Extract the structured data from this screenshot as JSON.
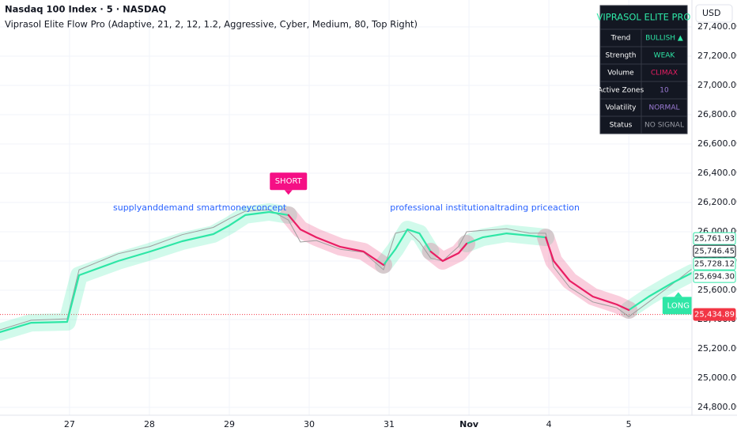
{
  "header": {
    "symbol": "Nasdaq 100 Index · 5 · NASDAQ",
    "indicator": "Viprasol Elite Flow Pro (Adaptive, 21, 2, 12, 1.2, Aggressive, Cyber, Medium, 80, Top Right)",
    "currency": "USD"
  },
  "dashboard": {
    "title": "VIPRASOL ELITE PRO",
    "rows": [
      {
        "label": "Trend",
        "value": "BULLISH ▲",
        "color": "#2ee6a6"
      },
      {
        "label": "Strength",
        "value": "WEAK",
        "color": "#2ee6a6"
      },
      {
        "label": "Volume",
        "value": "CLIMAX",
        "color": "#e91e63"
      },
      {
        "label": "Active Zones",
        "value": 10,
        "color": "#9c7bd6"
      },
      {
        "label": "Volatility",
        "value": "NORMAL",
        "color": "#9c7bd6"
      },
      {
        "label": "Status",
        "value": "NO SIGNAL",
        "color": "#9598a1"
      }
    ]
  },
  "chart_data": {
    "type": "line",
    "grid": true,
    "xlim": [
      -0.87,
      7.79
    ],
    "xticks": [
      {
        "value": 0,
        "label": "27"
      },
      {
        "value": 1,
        "label": "28"
      },
      {
        "value": 2,
        "label": "29"
      },
      {
        "value": 3,
        "label": "30"
      },
      {
        "value": 4,
        "label": "31"
      },
      {
        "value": 5,
        "label": "Nov"
      },
      {
        "value": 6,
        "label": "4"
      },
      {
        "value": 7,
        "label": "5"
      }
    ],
    "ylim": [
      24746,
      27584
    ],
    "yticks": [
      {
        "value": 24800,
        "label": "24,800.00"
      },
      {
        "value": 25000,
        "label": "25,000.00"
      },
      {
        "value": 25200,
        "label": "25,200.00"
      },
      {
        "value": 25400,
        "label": "25,400.00"
      },
      {
        "value": 25600,
        "label": "25,600.00"
      },
      {
        "value": 25800,
        "label": "25,800.00"
      },
      {
        "value": 26000,
        "label": "26,000.00"
      },
      {
        "value": 26200,
        "label": "26,200.00"
      },
      {
        "value": 26400,
        "label": "26,400.00"
      },
      {
        "value": 26600,
        "label": "26,600.00"
      },
      {
        "value": 26800,
        "label": "26,800.00"
      },
      {
        "value": 27000,
        "label": "27,000.00"
      },
      {
        "value": 27200,
        "label": "27,200.00"
      },
      {
        "value": 27400,
        "label": "27,400.00"
      }
    ],
    "x": [
      -0.87,
      -0.48,
      -0.03,
      0.12,
      0.61,
      1.01,
      1.41,
      1.8,
      2.0,
      2.2,
      2.5,
      2.74,
      2.89,
      3.09,
      3.39,
      3.68,
      3.93,
      4.08,
      4.23,
      4.38,
      4.52,
      4.67,
      4.87,
      4.97,
      5.17,
      5.47,
      5.76,
      5.96,
      6.06,
      6.26,
      6.55,
      6.85,
      7.0,
      7.25,
      7.54,
      7.79
    ],
    "series": [
      {
        "color": "#9e9e9e",
        "values": [
          25330,
          25395,
          25405,
          25740,
          25850,
          25900,
          25980,
          26030,
          26090,
          26140,
          26150,
          26080,
          25930,
          25940,
          25880,
          25860,
          25740,
          25990,
          26010,
          25930,
          25820,
          25800,
          25900,
          26000,
          26010,
          26020,
          25990,
          25990,
          25760,
          25620,
          25520,
          25480,
          25420,
          25520,
          25640,
          25746
        ]
      },
      {
        "color": "#2ee6a6",
        "values": [
          25314,
          25378,
          25384,
          25703,
          25800,
          25865,
          25935,
          25984,
          26043,
          26114,
          26135,
          26114,
          null,
          null,
          null,
          null,
          25773,
          25881,
          26016,
          25989,
          25865,
          null,
          null,
          25919,
          25962,
          25989,
          25973,
          25962,
          null,
          null,
          null,
          null,
          25465,
          25557,
          25649,
          25719
        ]
      },
      {
        "color": "#e91e63",
        "values": [
          null,
          null,
          null,
          null,
          null,
          null,
          null,
          null,
          null,
          null,
          null,
          26114,
          26016,
          25962,
          25897,
          25865,
          25773,
          null,
          null,
          null,
          25865,
          25800,
          25854,
          25919,
          null,
          null,
          null,
          25962,
          25800,
          25665,
          25557,
          25503,
          25465,
          null,
          null,
          null
        ]
      }
    ],
    "price_labels": [
      {
        "value": 25761.93,
        "label": "25,761.93",
        "color": "#2ee6a6",
        "style": "outline"
      },
      {
        "value": 25746.45,
        "label": "25,746.45",
        "color": "#131722",
        "style": "outline"
      },
      {
        "value": 25728.12,
        "label": "25,728.12",
        "color": "#2ee6a6",
        "style": "outline"
      },
      {
        "value": 25694.3,
        "label": "25,694.30",
        "color": "#2ee6a6",
        "style": "outline"
      },
      {
        "value": 25434.89,
        "label": "25,434.89",
        "color": "#f23645",
        "style": "filled"
      }
    ],
    "signals": [
      {
        "x": 2.74,
        "label": "SHORT",
        "color": "#f50f85",
        "side": "above"
      },
      {
        "x": 7.62,
        "label": "LONG",
        "color": "#2ee6a6",
        "side": "below"
      }
    ],
    "annotations": [
      "supplyanddemand smartmoneyconcept",
      "professional institutionaltrading priceaction"
    ]
  }
}
